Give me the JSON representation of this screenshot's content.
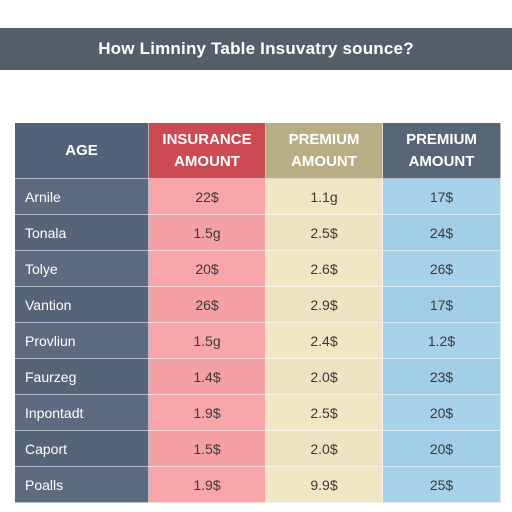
{
  "title": "How Limniny Table Insuvatry sounce?",
  "colors": {
    "banner": "#565e6a",
    "age_header": "#536278",
    "insurance_header": "#cc4a52",
    "premium_header_1": "#b8ae86",
    "premium_header_2": "#566677",
    "label_column": "#5d6b80",
    "insurance_column": "#f8a6aa",
    "premium_column_1": "#f1e7c5",
    "premium_column_2": "#a8d2ea"
  },
  "table": {
    "headers": [
      {
        "line1": "AGE",
        "line2": ""
      },
      {
        "line1": "INSURANCE",
        "line2": "AMOUNT"
      },
      {
        "line1": "PREMIUM",
        "line2": "AMOUNT"
      },
      {
        "line1": "PREMIUM",
        "line2": "AMOUNT"
      }
    ],
    "rows": [
      {
        "label": "Arnile",
        "values": [
          "22$",
          "1.1g",
          "17$"
        ]
      },
      {
        "label": "Tonala",
        "values": [
          "1.5g",
          "2.5$",
          "24$"
        ]
      },
      {
        "label": "Tolye",
        "values": [
          "20$",
          "2.6$",
          "26$"
        ]
      },
      {
        "label": "Vantion",
        "values": [
          "26$",
          "2.9$",
          "17$"
        ]
      },
      {
        "label": "Provliun",
        "values": [
          "1.5g",
          "2.4$",
          "1.2$"
        ]
      },
      {
        "label": "Faurzeg",
        "values": [
          "1.4$",
          "2.0$",
          "23$"
        ]
      },
      {
        "label": "Inpontadt",
        "values": [
          "1.9$",
          "2.5$",
          "20$"
        ]
      },
      {
        "label": "Caport",
        "values": [
          "1.5$",
          "2.0$",
          "20$"
        ]
      },
      {
        "label": "Poalls",
        "values": [
          "1.9$",
          "9.9$",
          "25$"
        ]
      }
    ]
  }
}
